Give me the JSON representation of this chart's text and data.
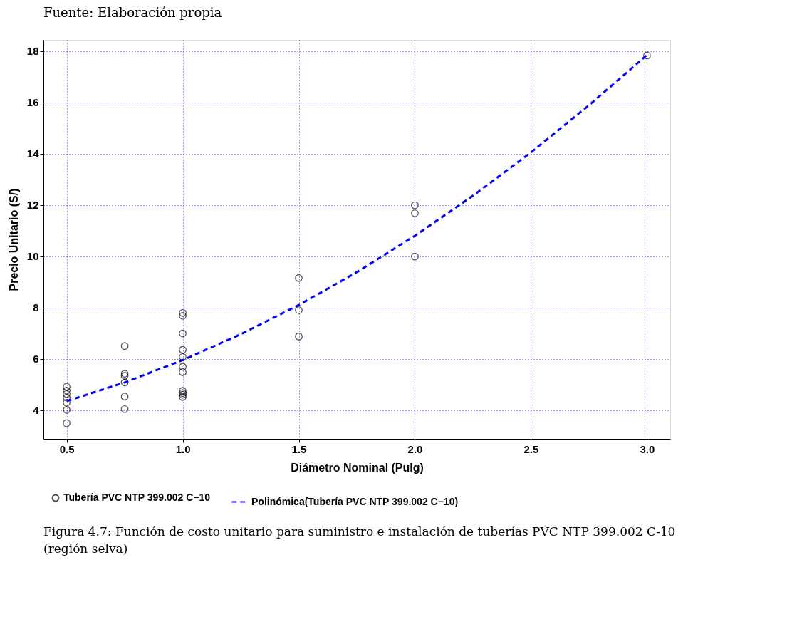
{
  "chart_data": {
    "type": "scatter",
    "xlabel": "Diámetro Nominal (Pulg)",
    "ylabel": "Precio Unitario (S/)",
    "annotations": [
      "Fuente: Elaboración propia",
      "Figura 4.7: Función de costo unitario para suministro e instalación de tuberías PVC NTP 399.002 C-10 (región selva)"
    ],
    "series": [
      {
        "name": "Tubería PVC NTP 399.002 C−10",
        "marker": "circle",
        "color": "#000000",
        "x": [
          0.5,
          0.5,
          0.5,
          0.5,
          0.5,
          0.5,
          0.5,
          0.75,
          0.75,
          0.75,
          0.75,
          0.75,
          0.75,
          1.0,
          1.0,
          1.0,
          1.0,
          1.0,
          1.0,
          1.0,
          1.0,
          1.0,
          1.0,
          1.0,
          1.5,
          1.5,
          1.5,
          2.0,
          2.0,
          2.0,
          3.0
        ],
        "values": [
          4.91,
          4.76,
          4.63,
          4.49,
          4.29,
          4.01,
          3.49,
          6.5,
          5.42,
          5.34,
          5.08,
          4.53,
          4.04,
          7.79,
          7.68,
          6.99,
          6.35,
          6.07,
          5.69,
          5.48,
          4.75,
          4.67,
          4.6,
          4.51,
          9.15,
          7.9,
          6.87,
          11.99,
          11.68,
          9.99,
          17.83
        ]
      },
      {
        "name": "Polinómica(Tubería PVC NTP 399.002 C−10)",
        "type": "line",
        "marker": "none",
        "line_style": "dashed",
        "color": "#0000ff",
        "x": [
          0.5,
          0.75,
          1.0,
          1.25,
          1.5,
          1.75,
          2.0,
          2.25,
          2.5,
          2.75,
          3.0
        ],
        "values": [
          4.35,
          5.08,
          5.95,
          6.96,
          8.1,
          9.38,
          10.8,
          12.36,
          14.05,
          15.89,
          17.85
        ]
      }
    ],
    "xlim": [
      0.4,
      3.1
    ],
    "ylim": [
      2.88,
      18.44
    ],
    "xticks": [
      {
        "value": 0.5,
        "label": "0.5"
      },
      {
        "value": 1,
        "label": "1.0"
      },
      {
        "value": 1.5,
        "label": "1.5"
      },
      {
        "value": 2,
        "label": "2.0"
      },
      {
        "value": 2.5,
        "label": "2.5"
      },
      {
        "value": 3,
        "label": "3.0"
      }
    ],
    "yticks": [
      4,
      6,
      8,
      10,
      12,
      14,
      16,
      18
    ],
    "grid": true,
    "legend": "bottom"
  }
}
